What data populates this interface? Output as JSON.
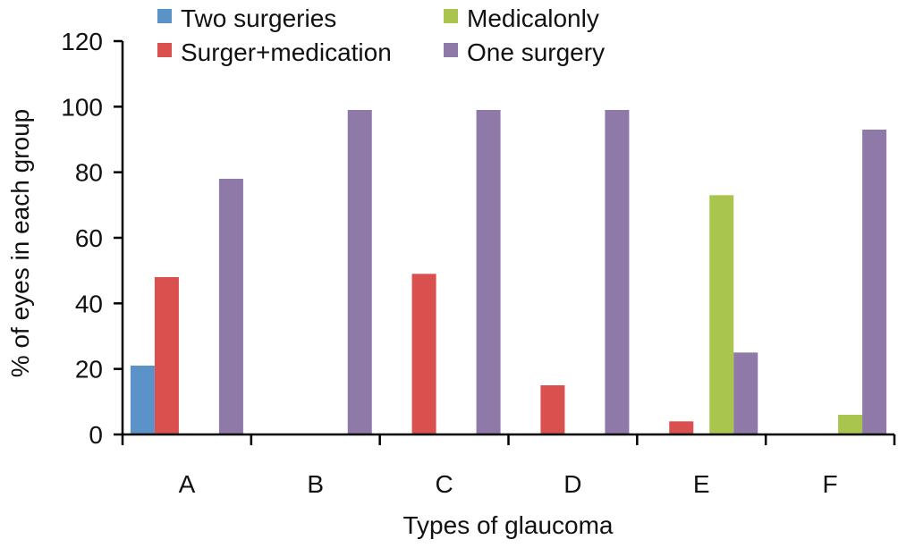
{
  "chart_data": {
    "type": "bar",
    "title": "",
    "xlabel": "Types of glaucoma",
    "ylabel": "% of eyes in each group",
    "ylim": [
      0,
      120
    ],
    "yticks": [
      0,
      20,
      40,
      60,
      80,
      100,
      120
    ],
    "categories": [
      "A",
      "B",
      "C",
      "D",
      "E",
      "F"
    ],
    "legend": "top-center",
    "grid": false,
    "series": [
      {
        "name": "Two surgeries",
        "color": "#5b93c9",
        "values": [
          21,
          0,
          0,
          0,
          0,
          0
        ]
      },
      {
        "name": "Surger+medication",
        "color": "#d9504e",
        "values": [
          48,
          0,
          49,
          15,
          4,
          0
        ]
      },
      {
        "name": "Medicalonly",
        "color": "#a9c54e",
        "values": [
          0,
          0,
          0,
          0,
          73,
          6
        ]
      },
      {
        "name": "One surgery",
        "color": "#8e79a8",
        "values": [
          78,
          99,
          99,
          99,
          25,
          93
        ]
      }
    ]
  }
}
